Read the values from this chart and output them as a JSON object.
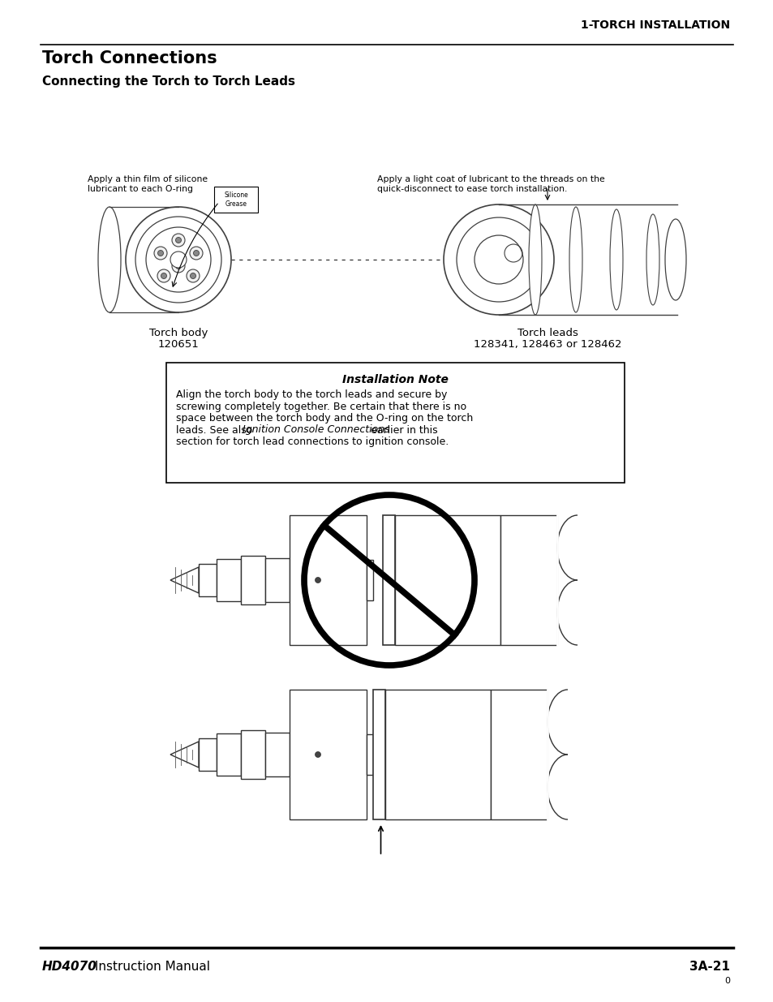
{
  "page_title": "1-TORCH INSTALLATION",
  "section_title": "Torch Connections",
  "subsection_title": "Connecting the Torch to Torch Leads",
  "annotation_left_1": "Apply a thin film of silicone",
  "annotation_left_2": "lubricant to each O-ring",
  "silicone_grease_label": "Silicone\nGrease",
  "annotation_right_1": "Apply a light coat of lubricant to the threads on the",
  "annotation_right_2": "quick-disconnect to ease torch installation.",
  "torch_body_label": "Torch body",
  "torch_body_number": "120651",
  "torch_leads_label": "Torch leads",
  "torch_leads_number": "128341, 128463 or 128462",
  "installation_note_title": "Installation Note",
  "installation_note_line1": "Align the torch body to the torch leads and secure by",
  "installation_note_line2": "screwing completely together. Be certain that there is no",
  "installation_note_line3": "space between the torch body and the O-ring on the torch",
  "installation_note_line4a": "leads. See also ",
  "installation_note_line4b": "Ignition Console Connections",
  "installation_note_line4c": " earlier in this",
  "installation_note_line5": "section for torch lead connections to ignition console.",
  "footer_left_bold": "HD4070",
  "footer_left_regular": " Instruction Manual",
  "footer_right": "3A-21",
  "footer_page": "0",
  "bg_color": "#ffffff",
  "text_color": "#000000"
}
